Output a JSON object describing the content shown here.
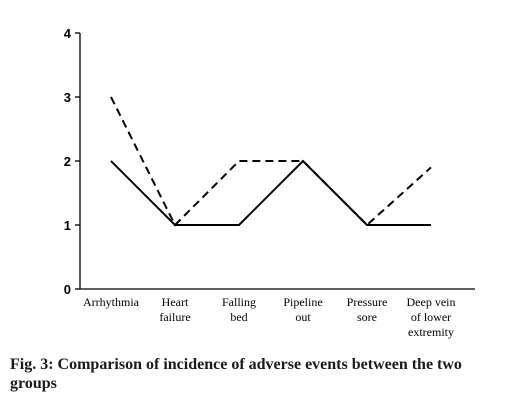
{
  "chart_data": {
    "type": "line",
    "title": "",
    "xlabel": "",
    "ylabel": "",
    "categories": [
      [
        "Arrhythmia"
      ],
      [
        "Heart",
        "failure"
      ],
      [
        "Falling",
        "bed"
      ],
      [
        "Pipeline",
        "out"
      ],
      [
        "Pressure",
        "sore"
      ],
      [
        "Deep vein",
        "of lower",
        "extremity"
      ]
    ],
    "series": [
      {
        "style": "solid",
        "color": "#000000",
        "values": [
          2,
          1,
          1,
          2,
          1,
          1
        ]
      },
      {
        "style": "dashed",
        "color": "#000000",
        "values": [
          3,
          1,
          2,
          2,
          1,
          1.9
        ]
      }
    ],
    "ylim": [
      0,
      4
    ],
    "yticks": [
      0,
      1,
      2,
      3,
      4
    ],
    "grid": false,
    "legend": "none"
  },
  "caption": "Fig. 3: Comparison of incidence of adverse events between the two groups"
}
